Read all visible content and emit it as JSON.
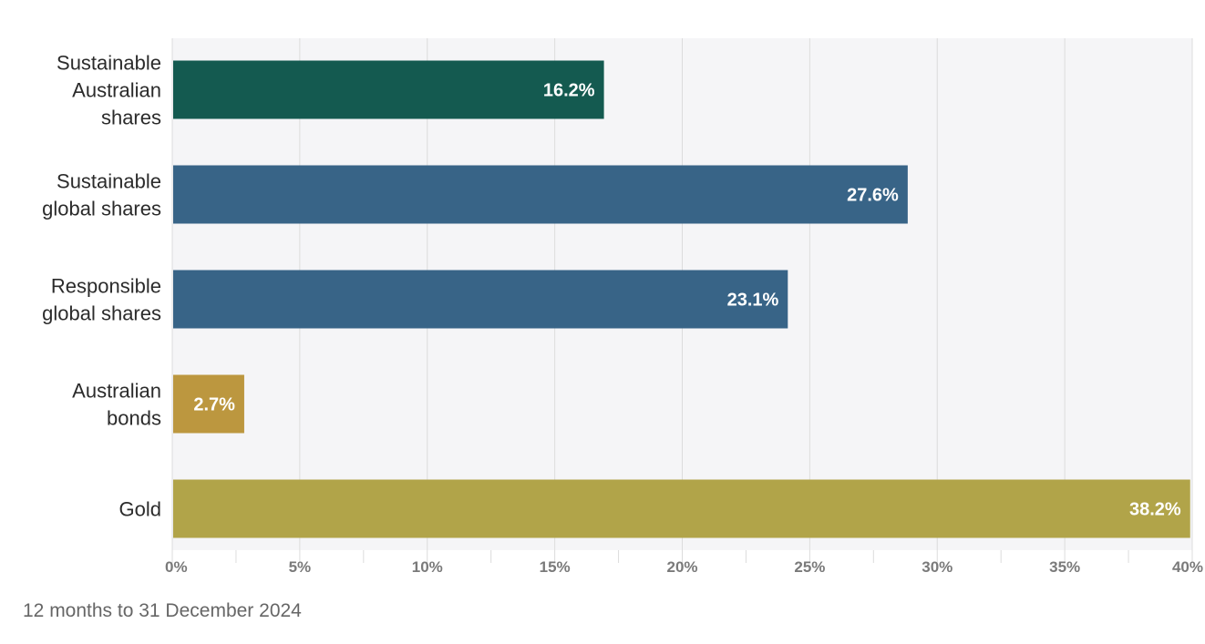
{
  "chart_data": {
    "type": "bar",
    "orientation": "horizontal",
    "categories": [
      [
        "Sustainable",
        "Australian",
        "shares"
      ],
      [
        "Sustainable",
        "global shares"
      ],
      [
        "Responsible",
        "global shares"
      ],
      [
        "Australian",
        "bonds"
      ],
      [
        "Gold"
      ]
    ],
    "values": [
      16.2,
      27.6,
      23.1,
      2.7,
      38.2
    ],
    "value_labels": [
      "16.2%",
      "27.6%",
      "23.1%",
      "2.7%",
      "38.2%"
    ],
    "colors": [
      "#145a50",
      "#386487",
      "#386487",
      "#bc973f",
      "#b1a449"
    ],
    "xlim": [
      0,
      40
    ],
    "xticks": [
      0,
      5,
      10,
      15,
      20,
      25,
      30,
      35,
      40
    ],
    "xtick_labels": [
      "0%",
      "5%",
      "10%",
      "15%",
      "20%",
      "25%",
      "30%",
      "35%",
      "40%"
    ],
    "grid": true,
    "background": "#f5f5f7"
  },
  "footnote": "12 months to 31 December 2024"
}
